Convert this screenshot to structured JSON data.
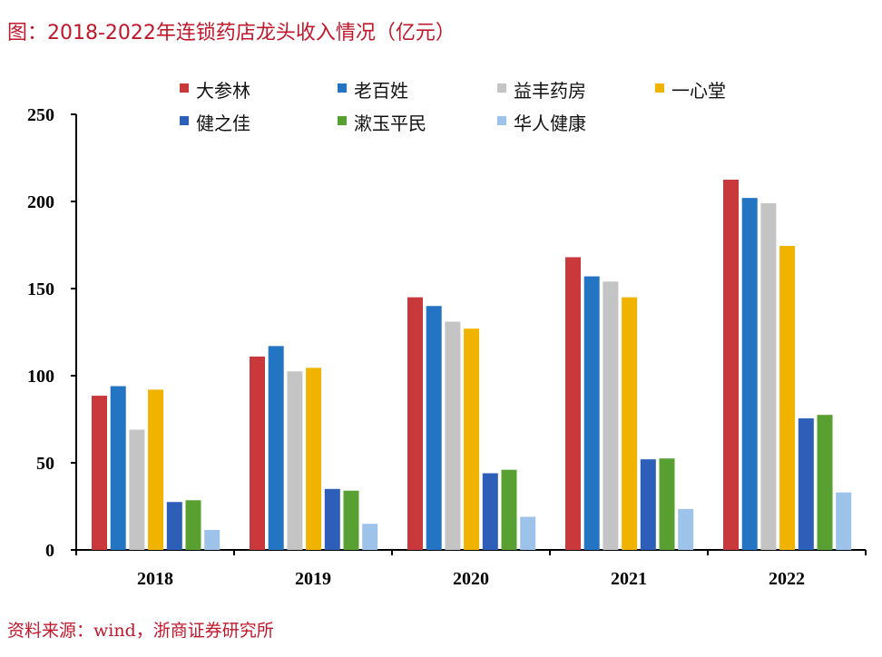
{
  "chart_data": {
    "type": "bar",
    "title": "图：2018-2022年连锁药店龙头收入情况（亿元）",
    "categories": [
      "2018",
      "2019",
      "2020",
      "2021",
      "2022"
    ],
    "ylim": [
      0,
      250
    ],
    "yticks": [
      0,
      50,
      100,
      150,
      200,
      250
    ],
    "legend_position": "top",
    "series": [
      {
        "name": "大参林",
        "color": "#c9383a",
        "values": [
          88.5,
          111,
          145,
          168,
          212.5
        ]
      },
      {
        "name": "老百姓",
        "color": "#2474c4",
        "values": [
          94,
          117,
          140,
          157,
          202
        ]
      },
      {
        "name": "益丰药房",
        "color": "#c4c4c4",
        "values": [
          69,
          102.5,
          131,
          154,
          199
        ]
      },
      {
        "name": "一心堂",
        "color": "#f0b400",
        "values": [
          92,
          104.5,
          127,
          145,
          174.5
        ]
      },
      {
        "name": "健之佳",
        "color": "#2d5fb8",
        "values": [
          27.5,
          35,
          44,
          52,
          75.5
        ]
      },
      {
        "name": "漱玉平民",
        "color": "#58a032",
        "values": [
          28.5,
          34,
          46,
          52.5,
          77.5
        ]
      },
      {
        "name": "华人健康",
        "color": "#9dc3ea",
        "values": [
          11.5,
          15,
          19,
          23.5,
          33
        ]
      }
    ]
  },
  "source": "资料来源：wind，浙商证券研究所"
}
